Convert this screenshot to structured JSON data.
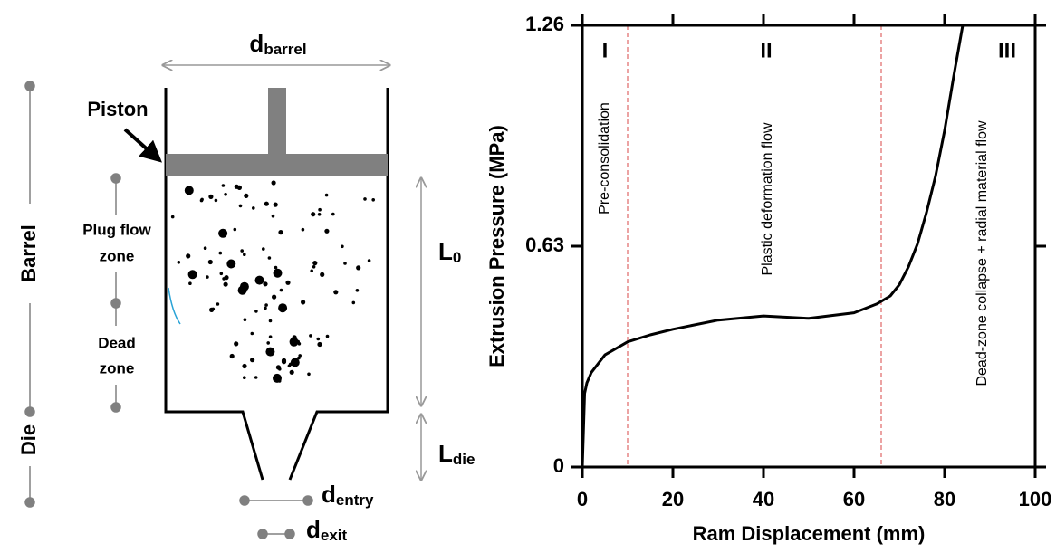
{
  "diagram": {
    "d_barrel": {
      "text": "d",
      "sub": "barrel"
    },
    "piston": "Piston",
    "plug_flow_zone": [
      "Plug flow",
      "zone"
    ],
    "dead_zone": [
      "Dead",
      "zone"
    ],
    "barrel": "Barrel",
    "die": "Die",
    "l0": {
      "text": "L",
      "sub": "0"
    },
    "l_die": {
      "text": "L",
      "sub": "die"
    },
    "d_entry": {
      "text": "d",
      "sub": "entry"
    },
    "d_exit": {
      "text": "d",
      "sub": "exit"
    }
  },
  "chart_data": {
    "type": "line",
    "x_label": "Ram Displacement (mm)",
    "y_label": "Extrusion Pressure (MPa)",
    "xlim": [
      0,
      100
    ],
    "ylim": [
      0,
      1.26
    ],
    "xticks": [
      0,
      20,
      40,
      60,
      80,
      100
    ],
    "yticks": [
      0,
      0.63,
      1.26
    ],
    "region_boundaries": [
      10,
      66
    ],
    "boundary_color": "#e06666",
    "regions": [
      {
        "label": "I",
        "annotation": "Pre-consolidation"
      },
      {
        "label": "II",
        "annotation": "Plastic deformation flow"
      },
      {
        "label": "III",
        "annotation": "Dead-zone collapse + radial material flow"
      }
    ],
    "series": [
      {
        "color": "#000000",
        "x": [
          0,
          0.5,
          1,
          2,
          5,
          10,
          15,
          20,
          30,
          40,
          50,
          60,
          65,
          68,
          70,
          72,
          74,
          76,
          78,
          80,
          82,
          84
        ],
        "values": [
          0,
          0.21,
          0.24,
          0.27,
          0.32,
          0.357,
          0.377,
          0.393,
          0.419,
          0.431,
          0.424,
          0.44,
          0.465,
          0.488,
          0.52,
          0.571,
          0.636,
          0.726,
          0.83,
          0.96,
          1.114,
          1.26
        ]
      }
    ]
  }
}
